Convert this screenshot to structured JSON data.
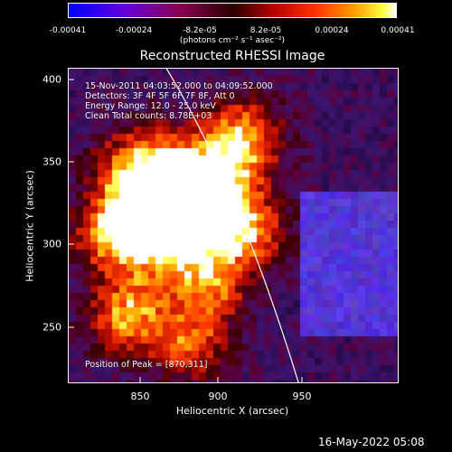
{
  "colorbar": {
    "ticks": [
      "-0.00041",
      "-0.00024",
      "-8.2e-05",
      "8.2e-05",
      "0.00024",
      "0.00041"
    ],
    "unit": "(photons cm⁻² s⁻¹ asec⁻²)",
    "colors": [
      "#0000ff",
      "#8a0050",
      "#2a0000",
      "#ff3000",
      "#ffff40",
      "#ffffff"
    ]
  },
  "title": "Reconstructed RHESSI Image",
  "info": {
    "time": "15-Nov-2011 04:03:52.000 to 04:09:52.000",
    "detectors": "Detectors: 3F 4F 5F 6F 7F 8F, Att 0",
    "energy": "Energy Range: 12.0 - 25.0 keV",
    "clean": "Clean     Total counts: 8.78E+03",
    "peak": "Position of Peak = [870,311]"
  },
  "axes": {
    "xlabel": "Heliocentric X (arcsec)",
    "ylabel": "Heliocentric Y (arcsec)",
    "xticks": [
      "850",
      "900",
      "950"
    ],
    "yticks": [
      "400",
      "350",
      "300",
      "250"
    ],
    "xrange": [
      805,
      996
    ],
    "yrange": [
      214,
      405
    ]
  },
  "limb_line_color": "#ffffff",
  "timestamp": "16-May-2022 05:08"
}
